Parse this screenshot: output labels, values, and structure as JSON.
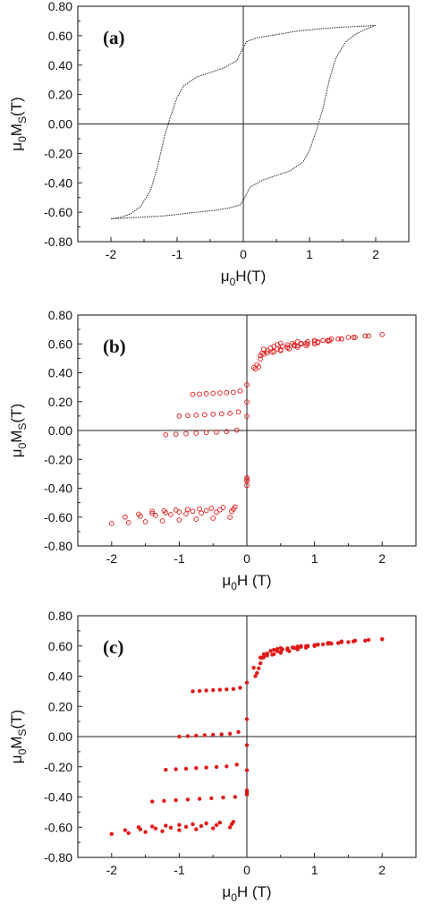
{
  "chart_data": [
    {
      "panel": "(a)",
      "type": "line",
      "xlabel_main": "μ",
      "xlabel_sub": "0",
      "xlabel_tail": "H(T)",
      "ylabel_main": "μ",
      "ylabel_sub": "0",
      "ylabel_mid": "M",
      "ylabel_sub2": "S",
      "ylabel_tail": "(T)",
      "xlim": [
        -2.5,
        2.5
      ],
      "ylim": [
        -0.8,
        0.8
      ],
      "xticks": [
        -2,
        -1,
        0,
        1,
        2
      ],
      "xtick_labels": [
        "-2",
        "-1",
        "0",
        "1",
        "2"
      ],
      "yticks": [
        -0.8,
        -0.6,
        -0.4,
        -0.2,
        0.0,
        0.2,
        0.4,
        0.6,
        0.8
      ],
      "ytick_labels": [
        "-0.80",
        "-0.60",
        "-0.40",
        "-0.20",
        "0.00",
        "0.20",
        "0.40",
        "0.60",
        "0.80"
      ],
      "color": "#333333",
      "marker": "tiny-dot",
      "series": [
        {
          "branch": "descending",
          "x": [
            2.0,
            1.8,
            1.6,
            1.4,
            1.2,
            1.0,
            0.8,
            0.6,
            0.4,
            0.2,
            0.05,
            0.0,
            -0.1,
            -0.3,
            -0.5,
            -0.7,
            -0.9,
            -1.0,
            -1.1,
            -1.2,
            -1.3,
            -1.4,
            -1.55,
            -1.7,
            -1.85,
            -2.0
          ],
          "y": [
            0.67,
            0.665,
            0.66,
            0.655,
            0.648,
            0.64,
            0.63,
            0.615,
            0.6,
            0.585,
            0.56,
            0.52,
            0.43,
            0.38,
            0.35,
            0.32,
            0.26,
            0.18,
            0.05,
            -0.1,
            -0.3,
            -0.45,
            -0.56,
            -0.61,
            -0.635,
            -0.645
          ]
        },
        {
          "branch": "ascending",
          "x": [
            -2.0,
            -1.8,
            -1.6,
            -1.4,
            -1.2,
            -1.0,
            -0.8,
            -0.6,
            -0.4,
            -0.2,
            -0.05,
            0.0,
            0.1,
            0.3,
            0.5,
            0.7,
            0.9,
            1.0,
            1.1,
            1.2,
            1.3,
            1.4,
            1.55,
            1.7,
            1.85,
            2.0
          ],
          "y": [
            -0.645,
            -0.64,
            -0.635,
            -0.63,
            -0.625,
            -0.615,
            -0.605,
            -0.595,
            -0.585,
            -0.57,
            -0.55,
            -0.52,
            -0.43,
            -0.38,
            -0.35,
            -0.32,
            -0.26,
            -0.18,
            -0.05,
            0.1,
            0.3,
            0.45,
            0.56,
            0.61,
            0.645,
            0.67
          ]
        }
      ]
    },
    {
      "panel": "(b)",
      "type": "scatter",
      "xlabel_main": "μ",
      "xlabel_sub": "0",
      "xlabel_tail": "H (T)",
      "ylabel_main": "μ",
      "ylabel_sub": "0",
      "ylabel_mid": "M",
      "ylabel_sub2": "S",
      "ylabel_tail": "(T)",
      "xlim": [
        -2.5,
        2.5
      ],
      "ylim": [
        -0.8,
        0.8
      ],
      "xticks": [
        -2,
        -1,
        0,
        1,
        2
      ],
      "xtick_labels": [
        "-2",
        "-1",
        "0",
        "1",
        "2"
      ],
      "yticks": [
        -0.8,
        -0.6,
        -0.4,
        -0.2,
        0.0,
        0.2,
        0.4,
        0.6,
        0.8
      ],
      "ytick_labels": [
        "-0.80",
        "-0.60",
        "-0.40",
        "-0.20",
        "0.00",
        "0.20",
        "0.40",
        "0.60",
        "0.80"
      ],
      "color": "#e01818",
      "marker": "open-circle",
      "minor_loops": [
        {
          "lower_field": -2.0,
          "lower_m": -0.645,
          "upper_field": 2.0,
          "upper_m": 0.665
        },
        {
          "lower_field": -1.8,
          "lower_m": -0.6,
          "upper_field": 1.8,
          "upper_m": 0.655
        },
        {
          "lower_field": -1.6,
          "lower_m": -0.58,
          "upper_field": 1.6,
          "upper_m": 0.645
        },
        {
          "lower_field": -1.4,
          "lower_m": -0.56,
          "upper_field": 1.4,
          "upper_m": 0.635
        },
        {
          "lower_field": -1.2,
          "lower_m": -0.03,
          "upper_field": 1.2,
          "upper_m": 0.62
        },
        {
          "lower_field": -1.0,
          "lower_m": 0.1,
          "upper_field": 1.0,
          "upper_m": 0.6
        },
        {
          "lower_field": -0.8,
          "lower_m": 0.25,
          "upper_field": 0.8,
          "upper_m": 0.6
        }
      ]
    },
    {
      "panel": "(c)",
      "type": "scatter",
      "xlabel_main": "μ",
      "xlabel_sub": "0",
      "xlabel_tail": "H (T)",
      "ylabel_main": "μ",
      "ylabel_sub": "0",
      "ylabel_mid": "M",
      "ylabel_sub2": "S",
      "ylabel_tail": "(T)",
      "xlim": [
        -2.5,
        2.5
      ],
      "ylim": [
        -0.8,
        0.8
      ],
      "xticks": [
        -2,
        -1,
        0,
        1,
        2
      ],
      "xtick_labels": [
        "-2",
        "-1",
        "0",
        "1",
        "2"
      ],
      "yticks": [
        -0.8,
        -0.6,
        -0.4,
        -0.2,
        0.0,
        0.2,
        0.4,
        0.6,
        0.8
      ],
      "ytick_labels": [
        "-0.80",
        "-0.60",
        "-0.40",
        "-0.20",
        "0.00",
        "0.20",
        "0.40",
        "0.60",
        "0.80"
      ],
      "color": "#e01818",
      "marker": "filled-dot",
      "minor_loops": [
        {
          "lower_field": -2.0,
          "lower_m": -0.645,
          "upper_field": 2.0,
          "upper_m": 0.645
        },
        {
          "lower_field": -1.8,
          "lower_m": -0.62,
          "upper_field": 1.8,
          "upper_m": 0.64
        },
        {
          "lower_field": -1.6,
          "lower_m": -0.6,
          "upper_field": 1.6,
          "upper_m": 0.635
        },
        {
          "lower_field": -1.4,
          "lower_m": -0.43,
          "upper_field": 1.4,
          "upper_m": 0.63
        },
        {
          "lower_field": -1.2,
          "lower_m": -0.22,
          "upper_field": 1.2,
          "upper_m": 0.62
        },
        {
          "lower_field": -1.0,
          "lower_m": 0.0,
          "upper_field": 1.0,
          "upper_m": 0.6
        },
        {
          "lower_field": -0.8,
          "lower_m": 0.3,
          "upper_field": 0.8,
          "upper_m": 0.6
        }
      ]
    }
  ]
}
